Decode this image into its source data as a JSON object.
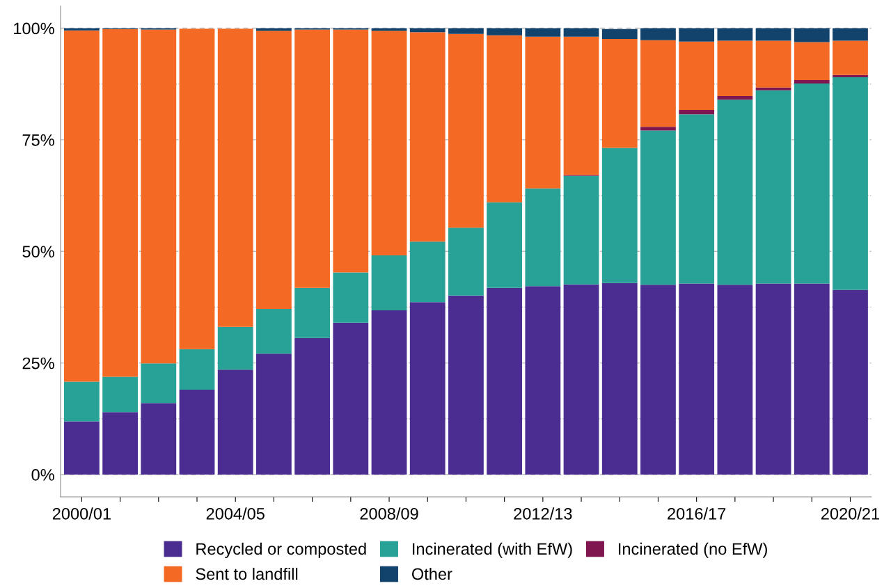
{
  "chart_data": {
    "type": "bar",
    "stacked": true,
    "categories": [
      "2000/01",
      null,
      null,
      null,
      "2004/05",
      null,
      null,
      null,
      "2008/09",
      null,
      null,
      null,
      "2012/13",
      null,
      null,
      null,
      "2016/17",
      null,
      null,
      null,
      "2020/21"
    ],
    "series": [
      {
        "name": "Recycled or composted",
        "color": "#4b2c91",
        "values": [
          11.9,
          14.0,
          16.0,
          19.0,
          23.5,
          27.1,
          30.6,
          34.0,
          36.8,
          38.6,
          40.1,
          41.8,
          42.2,
          42.6,
          42.9,
          42.5,
          42.8,
          42.5,
          42.8,
          42.8,
          41.4
        ]
      },
      {
        "name": "Incinerated (with EfW)",
        "color": "#28a197",
        "values": [
          8.9,
          7.9,
          8.9,
          9.1,
          9.6,
          10.0,
          11.2,
          11.3,
          12.3,
          13.6,
          15.2,
          19.2,
          21.9,
          24.3,
          30.3,
          34.6,
          37.9,
          41.5,
          43.3,
          44.8,
          47.6
        ]
      },
      {
        "name": "Incinerated (no EfW)",
        "color": "#801650",
        "values": [
          0,
          0,
          0,
          0,
          0,
          0,
          0,
          0,
          0,
          0,
          0,
          0,
          0,
          0.2,
          null,
          0.8,
          1.0,
          0.8,
          0.6,
          0.8,
          0.5
        ]
      },
      {
        "name": "Sent to landfill",
        "color": "#f46a25",
        "values": [
          78.7,
          77.9,
          74.8,
          71.8,
          66.8,
          62.3,
          57.9,
          54.4,
          50.3,
          46.9,
          43.4,
          37.4,
          34.0,
          31.0,
          24.4,
          19.4,
          15.3,
          12.4,
          10.5,
          8.5,
          7.7
        ]
      },
      {
        "name": "Other",
        "color": "#12436d",
        "values": [
          0.5,
          0.2,
          0.3,
          null,
          null,
          0.6,
          0.3,
          0.3,
          0.6,
          0.9,
          1.3,
          1.6,
          1.9,
          1.9,
          2.2,
          2.7,
          3.0,
          2.8,
          2.8,
          3.1,
          2.8
        ]
      }
    ],
    "ylim": [
      -5,
      105
    ],
    "yticks": [
      {
        "value": 0,
        "label": "0%"
      },
      {
        "value": 12.5,
        "label": null
      },
      {
        "value": 25,
        "label": "25%"
      },
      {
        "value": 37.5,
        "label": null
      },
      {
        "value": 50,
        "label": "50%"
      },
      {
        "value": 62.5,
        "label": null
      },
      {
        "value": 75,
        "label": "75%"
      },
      {
        "value": 87.5,
        "label": null
      },
      {
        "value": 100,
        "label": "100%"
      }
    ],
    "grid": "y",
    "legend": "bottom"
  }
}
